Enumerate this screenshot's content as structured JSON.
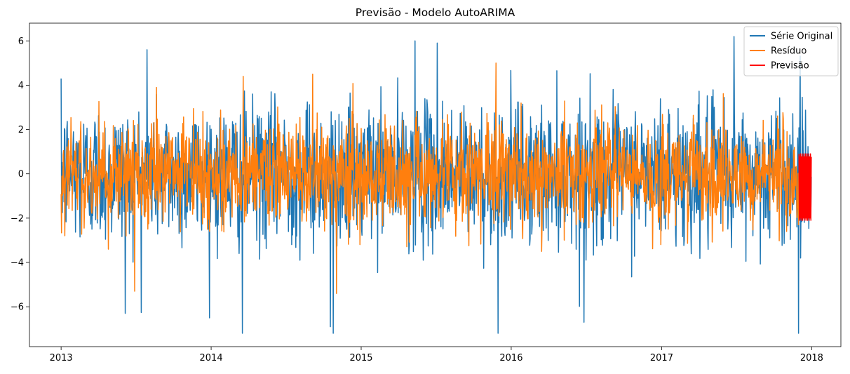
{
  "chart_data": {
    "type": "line",
    "title": "Previsão - Modelo AutoARIMA",
    "xlabel": "",
    "ylabel": "",
    "xlim": [
      "2012-10-16",
      "2018-03-13"
    ],
    "ylim": [
      -7.8,
      6.8
    ],
    "x_ticks": [
      "2013",
      "2014",
      "2015",
      "2016",
      "2017",
      "2018"
    ],
    "y_ticks": [
      -6,
      -4,
      -2,
      0,
      2,
      4,
      6
    ],
    "y_tick_labels": [
      "−6",
      "−4",
      "−2",
      "0",
      "2",
      "4",
      "6"
    ],
    "grid": false,
    "legend_position": "top-right",
    "series": [
      {
        "name": "Série Original",
        "color": "#1f77b4",
        "x_start": "2013-01-01",
        "x_end": "2017-12-31",
        "frequency": "daily",
        "observed_range": [
          -7.2,
          6.2
        ],
        "notable_points": [
          {
            "x": "2013-06-06",
            "y": -6.3
          },
          {
            "x": "2013-07-29",
            "y": 5.6
          },
          {
            "x": "2014-03-18",
            "y": -7.2
          },
          {
            "x": "2014-10-18",
            "y": -6.9
          },
          {
            "x": "2014-10-25",
            "y": -7.2
          },
          {
            "x": "2015-05-12",
            "y": 6.0
          },
          {
            "x": "2015-07-05",
            "y": 5.9
          },
          {
            "x": "2015-11-30",
            "y": -7.2
          },
          {
            "x": "2016-06-26",
            "y": -6.7
          },
          {
            "x": "2017-06-26",
            "y": 6.2
          },
          {
            "x": "2017-11-30",
            "y": -7.2
          }
        ]
      },
      {
        "name": "Resíduo",
        "color": "#ff7f0e",
        "x_start": "2013-01-01",
        "x_end": "2017-11-30",
        "frequency": "daily",
        "observed_range": [
          -5.4,
          5.0
        ],
        "notable_points": [
          {
            "x": "2013-06-29",
            "y": -5.3
          },
          {
            "x": "2014-03-20",
            "y": 4.4
          },
          {
            "x": "2014-11-02",
            "y": -5.4
          },
          {
            "x": "2015-11-25",
            "y": 5.0
          }
        ]
      },
      {
        "name": "Previsão",
        "color": "#ff0000",
        "x_start": "2017-12-01",
        "x_end": "2017-12-31",
        "frequency": "daily",
        "observed_range": [
          -2.1,
          0.9
        ]
      }
    ]
  }
}
